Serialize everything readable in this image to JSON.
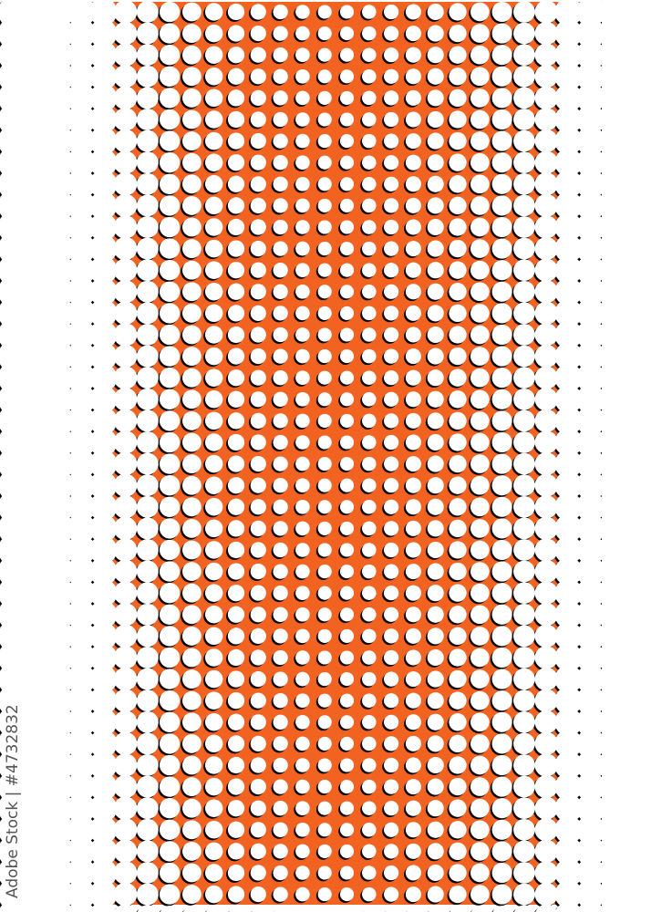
{
  "artwork": {
    "description_type": "halftone-dot-pattern",
    "colors": {
      "background": "#f26322",
      "dots": "#ffffff",
      "dot_shadow": "#000000",
      "page": "#ffffff"
    }
  },
  "watermark": {
    "text": "Adobe Stock | #4732832"
  }
}
